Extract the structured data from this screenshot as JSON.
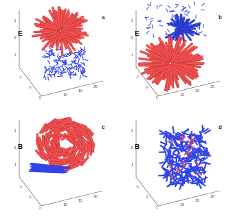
{
  "panels": [
    {
      "letter": "a",
      "field": "E"
    },
    {
      "letter": "b",
      "field": "E"
    },
    {
      "letter": "c",
      "field": "B"
    },
    {
      "letter": "d",
      "field": "B"
    }
  ],
  "axis_ticks": {
    "z": [
      "1",
      "0",
      "-1"
    ],
    "x": [
      "-1",
      "0",
      "1"
    ],
    "y": [
      "10",
      "15",
      "20"
    ]
  }
}
